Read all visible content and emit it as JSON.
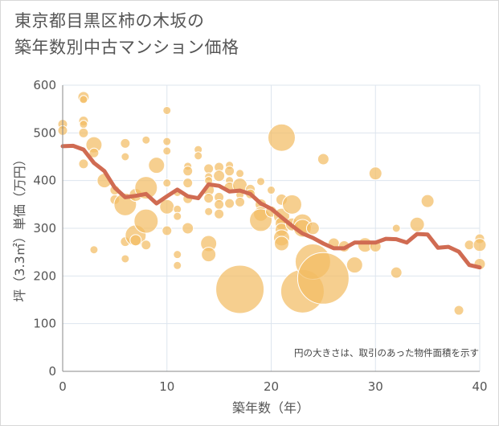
{
  "title_lines": [
    "東京都目黒区柿の木坂の",
    "築年数別中古マンション価格"
  ],
  "chart_data": {
    "type": "scatter",
    "xlabel": "築年数（年）",
    "ylabel": "坪（3.3㎡）単価（万円）",
    "xlim": [
      0,
      40
    ],
    "ylim": [
      0,
      600
    ],
    "x_ticks": [
      0,
      10,
      20,
      30,
      40
    ],
    "y_ticks": [
      0,
      100,
      200,
      300,
      400,
      500,
      600
    ],
    "grid": true,
    "annotation": "円の大きさは、取引のあった物件面積を示す",
    "colors": {
      "bubble": "#f2bd64",
      "line": "#d06b52",
      "grid": "#dde5ee",
      "axis": "#888888"
    },
    "bubbles": [
      {
        "x": 0,
        "y": 518,
        "s": 6
      },
      {
        "x": 0,
        "y": 505,
        "s": 6
      },
      {
        "x": 2,
        "y": 575,
        "s": 7
      },
      {
        "x": 2,
        "y": 570,
        "s": 5
      },
      {
        "x": 2,
        "y": 525,
        "s": 6
      },
      {
        "x": 2,
        "y": 518,
        "s": 5
      },
      {
        "x": 2,
        "y": 500,
        "s": 6
      },
      {
        "x": 2,
        "y": 435,
        "s": 6
      },
      {
        "x": 3,
        "y": 475,
        "s": 10
      },
      {
        "x": 3,
        "y": 458,
        "s": 6
      },
      {
        "x": 3,
        "y": 255,
        "s": 5
      },
      {
        "x": 4,
        "y": 400,
        "s": 9
      },
      {
        "x": 5,
        "y": 380,
        "s": 6
      },
      {
        "x": 5,
        "y": 360,
        "s": 6
      },
      {
        "x": 6,
        "y": 478,
        "s": 6
      },
      {
        "x": 6,
        "y": 450,
        "s": 5
      },
      {
        "x": 6,
        "y": 350,
        "s": 14
      },
      {
        "x": 6,
        "y": 272,
        "s": 6
      },
      {
        "x": 6,
        "y": 236,
        "s": 5
      },
      {
        "x": 7,
        "y": 370,
        "s": 8
      },
      {
        "x": 7,
        "y": 285,
        "s": 13
      },
      {
        "x": 7,
        "y": 275,
        "s": 7
      },
      {
        "x": 8,
        "y": 485,
        "s": 5
      },
      {
        "x": 8,
        "y": 385,
        "s": 14
      },
      {
        "x": 8,
        "y": 315,
        "s": 15
      },
      {
        "x": 8,
        "y": 265,
        "s": 6
      },
      {
        "x": 9,
        "y": 432,
        "s": 10
      },
      {
        "x": 10,
        "y": 547,
        "s": 5
      },
      {
        "x": 10,
        "y": 482,
        "s": 5
      },
      {
        "x": 10,
        "y": 462,
        "s": 5
      },
      {
        "x": 10,
        "y": 395,
        "s": 5
      },
      {
        "x": 10,
        "y": 345,
        "s": 9
      },
      {
        "x": 10,
        "y": 295,
        "s": 6
      },
      {
        "x": 11,
        "y": 375,
        "s": 5
      },
      {
        "x": 11,
        "y": 340,
        "s": 5
      },
      {
        "x": 11,
        "y": 325,
        "s": 5
      },
      {
        "x": 11,
        "y": 245,
        "s": 5
      },
      {
        "x": 11,
        "y": 222,
        "s": 5
      },
      {
        "x": 12,
        "y": 430,
        "s": 5
      },
      {
        "x": 12,
        "y": 420,
        "s": 6
      },
      {
        "x": 12,
        "y": 395,
        "s": 6
      },
      {
        "x": 12,
        "y": 362,
        "s": 6
      },
      {
        "x": 12,
        "y": 300,
        "s": 7
      },
      {
        "x": 13,
        "y": 465,
        "s": 5
      },
      {
        "x": 13,
        "y": 452,
        "s": 5
      },
      {
        "x": 14,
        "y": 425,
        "s": 6
      },
      {
        "x": 14,
        "y": 408,
        "s": 5
      },
      {
        "x": 14,
        "y": 400,
        "s": 5
      },
      {
        "x": 14,
        "y": 380,
        "s": 7
      },
      {
        "x": 14,
        "y": 363,
        "s": 6
      },
      {
        "x": 14,
        "y": 335,
        "s": 5
      },
      {
        "x": 14,
        "y": 268,
        "s": 10
      },
      {
        "x": 14,
        "y": 245,
        "s": 9
      },
      {
        "x": 15,
        "y": 428,
        "s": 6
      },
      {
        "x": 15,
        "y": 410,
        "s": 7
      },
      {
        "x": 15,
        "y": 365,
        "s": 6
      },
      {
        "x": 15,
        "y": 350,
        "s": 6
      },
      {
        "x": 15,
        "y": 330,
        "s": 6
      },
      {
        "x": 16,
        "y": 432,
        "s": 5
      },
      {
        "x": 16,
        "y": 420,
        "s": 6
      },
      {
        "x": 16,
        "y": 400,
        "s": 5
      },
      {
        "x": 16,
        "y": 385,
        "s": 7
      },
      {
        "x": 16,
        "y": 352,
        "s": 6
      },
      {
        "x": 17,
        "y": 415,
        "s": 5
      },
      {
        "x": 17,
        "y": 390,
        "s": 9
      },
      {
        "x": 17,
        "y": 370,
        "s": 5
      },
      {
        "x": 17,
        "y": 355,
        "s": 6
      },
      {
        "x": 17,
        "y": 172,
        "s": 30
      },
      {
        "x": 18,
        "y": 382,
        "s": 6
      },
      {
        "x": 18,
        "y": 372,
        "s": 6
      },
      {
        "x": 19,
        "y": 398,
        "s": 5
      },
      {
        "x": 19,
        "y": 350,
        "s": 7
      },
      {
        "x": 19,
        "y": 330,
        "s": 9
      },
      {
        "x": 19,
        "y": 317,
        "s": 14
      },
      {
        "x": 20,
        "y": 380,
        "s": 5
      },
      {
        "x": 20,
        "y": 335,
        "s": 7
      },
      {
        "x": 21,
        "y": 490,
        "s": 17
      },
      {
        "x": 21,
        "y": 360,
        "s": 7
      },
      {
        "x": 21,
        "y": 325,
        "s": 10
      },
      {
        "x": 21,
        "y": 310,
        "s": 8
      },
      {
        "x": 21,
        "y": 297,
        "s": 8
      },
      {
        "x": 21,
        "y": 280,
        "s": 10
      },
      {
        "x": 21,
        "y": 268,
        "s": 9
      },
      {
        "x": 22,
        "y": 350,
        "s": 12
      },
      {
        "x": 22,
        "y": 308,
        "s": 8
      },
      {
        "x": 23,
        "y": 310,
        "s": 12
      },
      {
        "x": 23,
        "y": 300,
        "s": 11
      },
      {
        "x": 23,
        "y": 168,
        "s": 27
      },
      {
        "x": 24,
        "y": 300,
        "s": 8
      },
      {
        "x": 24,
        "y": 230,
        "s": 22
      },
      {
        "x": 25,
        "y": 445,
        "s": 7
      },
      {
        "x": 25,
        "y": 195,
        "s": 32
      },
      {
        "x": 26,
        "y": 268,
        "s": 7
      },
      {
        "x": 27,
        "y": 262,
        "s": 7
      },
      {
        "x": 28,
        "y": 223,
        "s": 10
      },
      {
        "x": 29,
        "y": 265,
        "s": 9
      },
      {
        "x": 30,
        "y": 415,
        "s": 8
      },
      {
        "x": 30,
        "y": 262,
        "s": 7
      },
      {
        "x": 32,
        "y": 300,
        "s": 5
      },
      {
        "x": 32,
        "y": 207,
        "s": 7
      },
      {
        "x": 34,
        "y": 308,
        "s": 9
      },
      {
        "x": 35,
        "y": 357,
        "s": 8
      },
      {
        "x": 38,
        "y": 128,
        "s": 6
      },
      {
        "x": 39,
        "y": 265,
        "s": 6
      },
      {
        "x": 40,
        "y": 278,
        "s": 6
      },
      {
        "x": 40,
        "y": 265,
        "s": 8
      },
      {
        "x": 40,
        "y": 225,
        "s": 7
      }
    ],
    "trend_line": {
      "x": [
        0,
        1,
        2,
        3,
        4,
        5,
        6,
        7,
        8,
        9,
        10,
        11,
        12,
        13,
        14,
        15,
        16,
        17,
        18,
        19,
        20,
        21,
        22,
        23,
        24,
        25,
        26,
        27,
        28,
        29,
        30,
        31,
        32,
        33,
        34,
        35,
        36,
        37,
        38,
        39,
        40
      ],
      "y": [
        472,
        473,
        465,
        437,
        420,
        385,
        365,
        368,
        372,
        352,
        367,
        381,
        367,
        363,
        392,
        389,
        377,
        379,
        372,
        352,
        341,
        323,
        305,
        289,
        280,
        268,
        258,
        258,
        270,
        270,
        270,
        278,
        277,
        270,
        288,
        287,
        259,
        261,
        251,
        223,
        218
      ]
    }
  }
}
